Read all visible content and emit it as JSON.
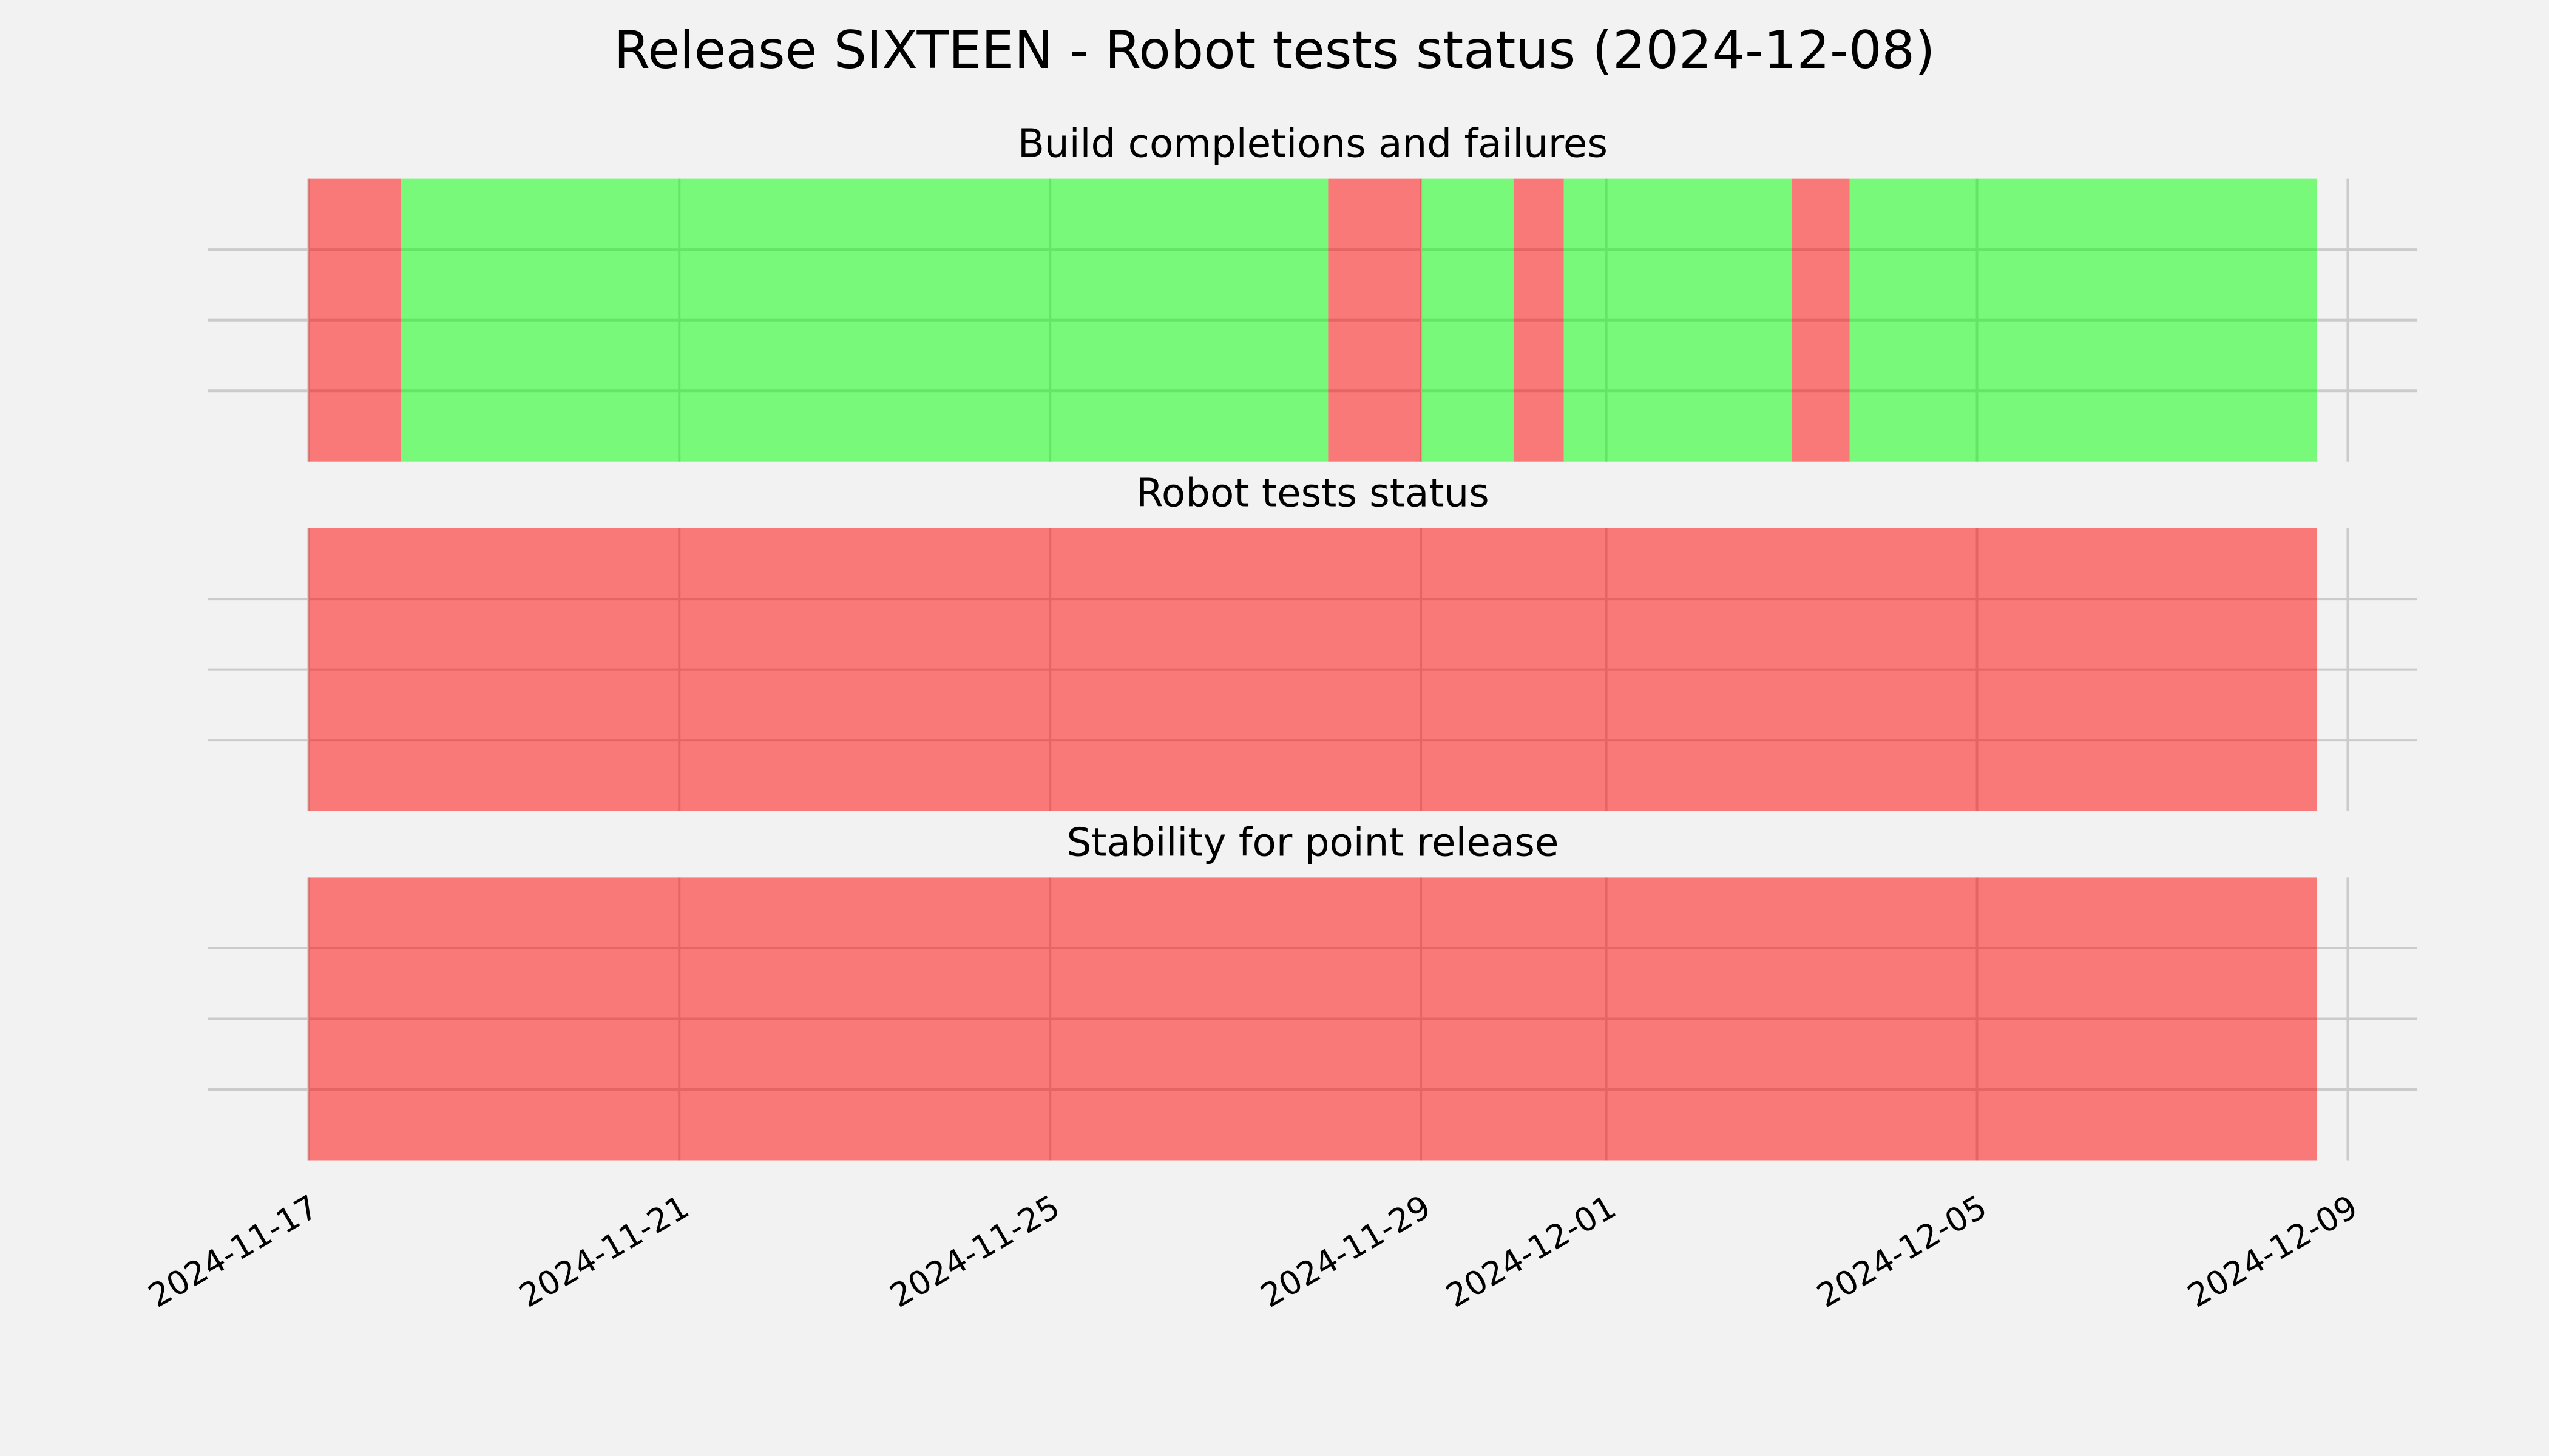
{
  "title": "Release SIXTEEN - Robot tests status (2024-12-08)",
  "chart_data": [
    {
      "type": "timeline",
      "title": "Build completions and failures",
      "segments": [
        {
          "start": "2024-11-17T00:00",
          "end": "2024-11-18T00:00",
          "color": "#ff0000"
        },
        {
          "start": "2024-11-18T00:00",
          "end": "2024-11-28T00:00",
          "color": "#00ff00"
        },
        {
          "start": "2024-11-28T00:00",
          "end": "2024-11-29T00:00",
          "color": "#ff0000"
        },
        {
          "start": "2024-11-29T00:00",
          "end": "2024-11-30T00:00",
          "color": "#00ff00"
        },
        {
          "start": "2024-11-30T00:00",
          "end": "2024-11-30T13:00",
          "color": "#ff0000"
        },
        {
          "start": "2024-11-30T13:00",
          "end": "2024-12-03T00:00",
          "color": "#00ff00"
        },
        {
          "start": "2024-12-03T00:00",
          "end": "2024-12-03T15:00",
          "color": "#ff0000"
        },
        {
          "start": "2024-12-03T15:00",
          "end": "2024-12-08T16:00",
          "color": "#00ff00"
        }
      ],
      "alpha": 0.5,
      "xlim": [
        "2024-11-15T22:00",
        "2024-12-09T18:00"
      ],
      "xticks": [
        "2024-11-17",
        "2024-11-21",
        "2024-11-25",
        "2024-11-29",
        "2024-12-01",
        "2024-12-05",
        "2024-12-09"
      ],
      "ylim": [
        0,
        1
      ],
      "yticks": [
        0.25,
        0.5,
        0.75
      ],
      "grid": true
    },
    {
      "type": "timeline",
      "title": "Robot tests status",
      "segments": [
        {
          "start": "2024-11-17T00:00",
          "end": "2024-12-08T16:00",
          "color": "#ff0000"
        }
      ],
      "alpha": 0.5,
      "xlim": [
        "2024-11-15T22:00",
        "2024-12-09T18:00"
      ],
      "xticks": [
        "2024-11-17",
        "2024-11-21",
        "2024-11-25",
        "2024-11-29",
        "2024-12-01",
        "2024-12-05",
        "2024-12-09"
      ],
      "ylim": [
        0,
        1
      ],
      "yticks": [
        0.25,
        0.5,
        0.75
      ],
      "grid": true
    },
    {
      "type": "timeline",
      "title": "Stability for point release",
      "segments": [
        {
          "start": "2024-11-17T00:00",
          "end": "2024-12-08T16:00",
          "color": "#ff0000"
        }
      ],
      "alpha": 0.5,
      "xlim": [
        "2024-11-15T22:00",
        "2024-12-09T18:00"
      ],
      "xticks": [
        "2024-11-17",
        "2024-11-21",
        "2024-11-25",
        "2024-11-29",
        "2024-12-01",
        "2024-12-05",
        "2024-12-09"
      ],
      "ylim": [
        0,
        1
      ],
      "yticks": [
        0.25,
        0.5,
        0.75
      ],
      "grid": true
    }
  ]
}
